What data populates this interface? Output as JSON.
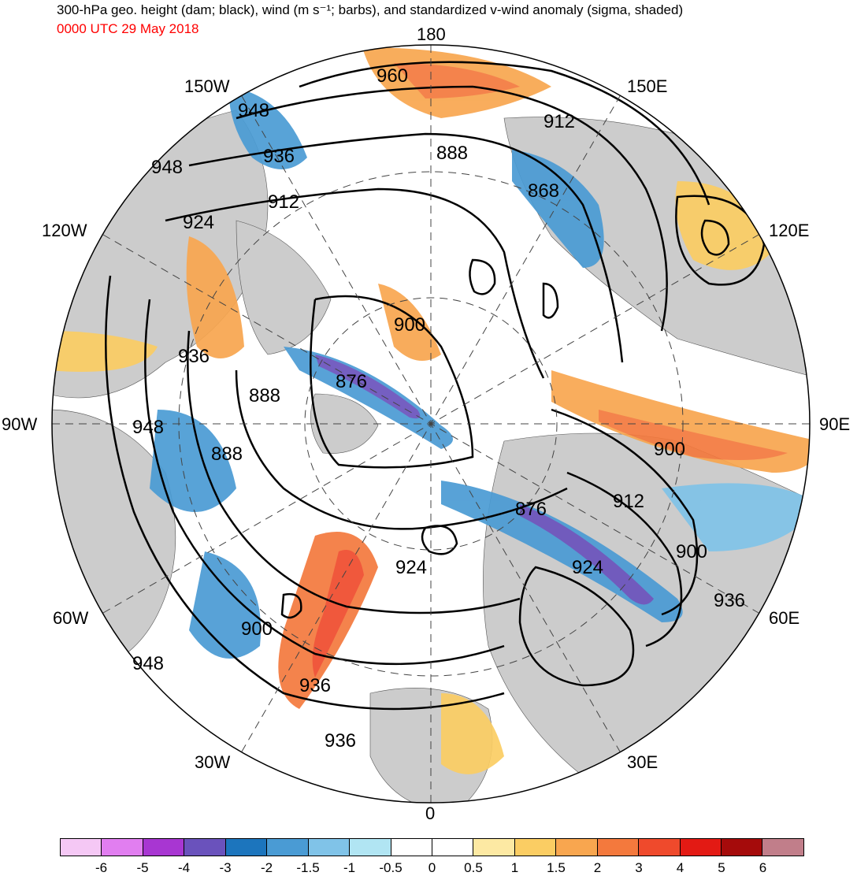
{
  "title": "300-hPa geo. height (dam; black), wind (m s⁻¹; barbs), and standardized v-wind anomaly (sigma, shaded)",
  "valid_time": "0000 UTC 29 May 2018",
  "valid_time_color": "#ff0000",
  "projection": "north polar stereographic",
  "longitude_labels": {
    "lon_180": "180",
    "lon_150e": "150E",
    "lon_120e": "120E",
    "lon_90e": "90E",
    "lon_60e": "60E",
    "lon_30e": "30E",
    "lon_0": "0",
    "lon_30w": "30W",
    "lon_60w": "60W",
    "lon_90w": "90W",
    "lon_120w": "120W",
    "lon_150w": "150W"
  },
  "contour_labels": [
    "960",
    "948",
    "936",
    "912",
    "924",
    "948",
    "936",
    "888",
    "948",
    "888",
    "876",
    "900",
    "912",
    "888",
    "868",
    "900",
    "912",
    "876",
    "900",
    "924",
    "924",
    "936",
    "900",
    "936",
    "936",
    "948"
  ],
  "colorbar": {
    "colors": [
      "#f5c8f5",
      "#e17ef0",
      "#a836d2",
      "#6a52bc",
      "#1c75bd",
      "#4a9bd4",
      "#80c3e8",
      "#b1e5f3",
      "#ffffff",
      "#ffffff",
      "#fde9a3",
      "#fbcd63",
      "#f8a64f",
      "#f4793d",
      "#ef4a2c",
      "#e31a14",
      "#a50b0b",
      "#c17e8a"
    ],
    "tick_labels": [
      "-6",
      "-5",
      "-4",
      "-3",
      "-2",
      "-1.5",
      "-1",
      "-0.5",
      "0",
      "0.5",
      "1",
      "1.5",
      "2",
      "3",
      "4",
      "5",
      "6"
    ]
  },
  "land_color": "#cccccc",
  "ocean_color": "#ffffff"
}
